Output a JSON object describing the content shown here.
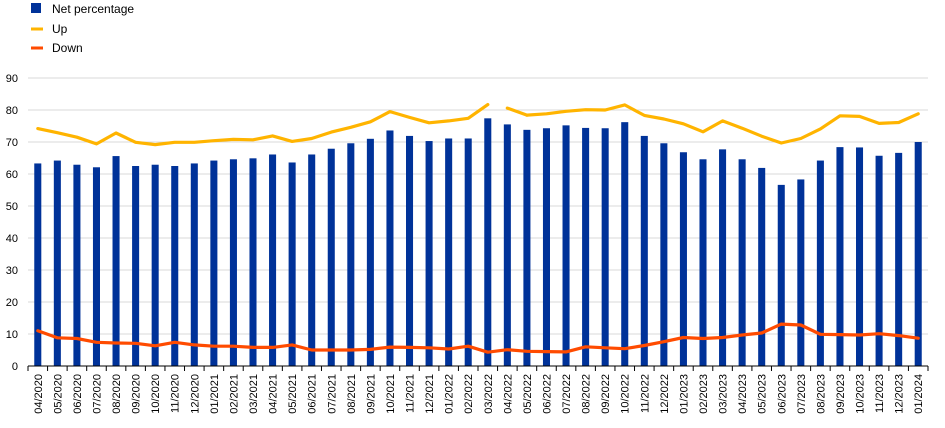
{
  "chart_data": {
    "type": "bar",
    "categories": [
      "04/2020",
      "05/2020",
      "06/2020",
      "07/2020",
      "08/2020",
      "09/2020",
      "10/2020",
      "11/2020",
      "12/2020",
      "01/2021",
      "02/2021",
      "03/2021",
      "04/2021",
      "05/2021",
      "06/2021",
      "07/2021",
      "08/2021",
      "09/2021",
      "10/2021",
      "11/2021",
      "12/2021",
      "01/2022",
      "02/2022",
      "03/2022",
      "04/2022",
      "05/2022",
      "06/2022",
      "07/2022",
      "08/2022",
      "09/2022",
      "10/2022",
      "11/2022",
      "12/2022",
      "01/2023",
      "02/2023",
      "03/2023",
      "04/2023",
      "05/2023",
      "06/2023",
      "07/2023",
      "08/2023",
      "09/2023",
      "10/2023",
      "11/2023",
      "12/2023",
      "01/2024"
    ],
    "ylim": [
      0,
      90
    ],
    "yticks": [
      "0",
      "10",
      "20",
      "30",
      "40",
      "50",
      "60",
      "70",
      "80",
      "90"
    ],
    "grid": true,
    "legend_position": "top-left",
    "series": [
      {
        "name": "Net percentage",
        "type": "bar",
        "color": "#003299",
        "values": [
          63.3,
          64.2,
          62.9,
          62.1,
          65.6,
          62.5,
          62.9,
          62.5,
          63.3,
          64.2,
          64.6,
          64.9,
          66.1,
          63.6,
          66.1,
          67.9,
          69.6,
          71.0,
          73.6,
          71.9,
          70.3,
          71.1,
          71.1,
          77.4,
          75.5,
          73.8,
          74.3,
          75.2,
          74.4,
          74.3,
          76.2,
          71.9,
          69.6,
          66.8,
          64.6,
          67.7,
          64.6,
          61.9,
          56.6,
          58.3,
          64.2,
          68.4,
          68.3,
          65.7,
          66.6,
          70.0
        ]
      },
      {
        "name": "Up",
        "type": "line",
        "color": "#FFB400",
        "values": [
          74.2,
          72.9,
          71.5,
          69.4,
          72.8,
          69.9,
          69.2,
          69.9,
          69.9,
          70.4,
          70.8,
          70.7,
          71.9,
          70.2,
          71.1,
          73.1,
          74.6,
          76.3,
          79.5,
          77.7,
          76.0,
          76.6,
          77.4,
          81.7,
          null,
          78.4,
          78.8,
          79.6,
          80.1,
          80.0,
          81.6,
          78.3,
          77.2,
          75.7,
          73.2,
          76.6,
          74.3,
          71.8,
          69.7,
          71.1,
          74.1,
          78.2,
          78.0,
          75.8,
          76.1,
          78.8
        ]
      },
      {
        "name": "Up",
        "type": "line",
        "color": "#FFB400",
        "values": [
          null,
          null,
          null,
          null,
          null,
          null,
          null,
          null,
          null,
          null,
          null,
          null,
          null,
          null,
          null,
          null,
          null,
          null,
          null,
          null,
          null,
          null,
          null,
          null,
          80.6,
          78.4,
          null,
          null,
          null,
          null,
          null,
          null,
          null,
          null,
          null,
          null,
          null,
          null,
          null,
          null,
          null,
          null,
          null,
          null,
          null,
          null
        ]
      },
      {
        "name": "Down",
        "type": "line",
        "color": "#FF4B00",
        "values": [
          11.0,
          8.8,
          8.6,
          7.4,
          7.2,
          7.1,
          6.3,
          7.4,
          6.6,
          6.2,
          6.2,
          5.8,
          5.8,
          6.6,
          5.0,
          5.0,
          5.0,
          5.2,
          5.9,
          5.8,
          5.7,
          5.3,
          6.2,
          4.3,
          5.1,
          4.6,
          4.5,
          4.4,
          6.0,
          5.7,
          5.4,
          6.4,
          7.6,
          8.9,
          8.6,
          8.9,
          9.7,
          10.3,
          13.1,
          12.8,
          9.9,
          9.8,
          9.7,
          10.1,
          9.5,
          8.7
        ]
      }
    ]
  }
}
